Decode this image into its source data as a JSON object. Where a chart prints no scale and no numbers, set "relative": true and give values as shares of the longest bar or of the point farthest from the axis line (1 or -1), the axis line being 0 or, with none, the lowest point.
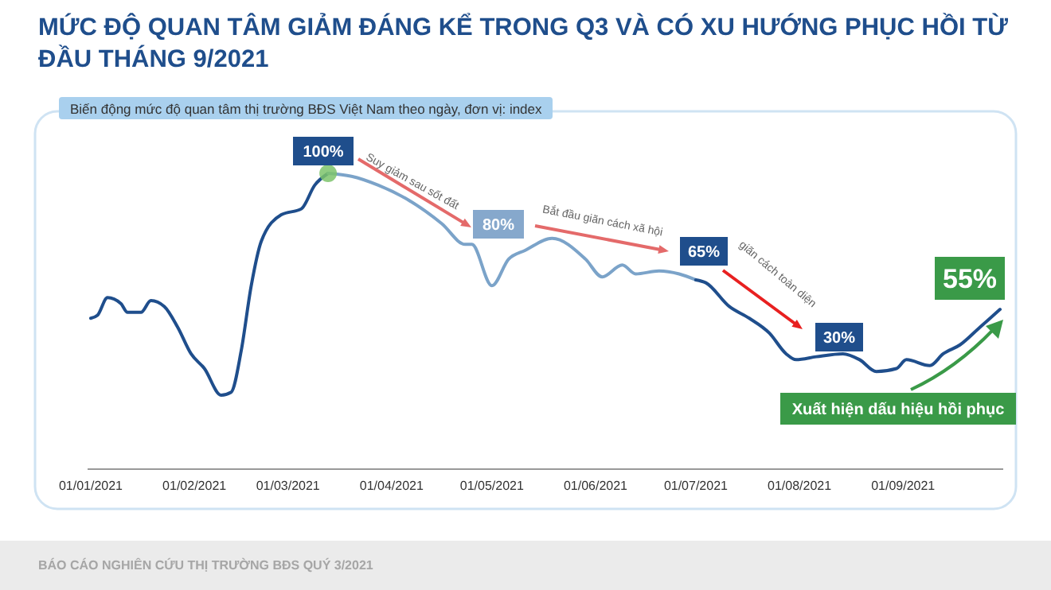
{
  "chart_data": {
    "type": "line",
    "relative": true,
    "title": "MỨC ĐỘ QUAN TÂM GIẢM ĐÁNG KỂ TRONG Q3 VÀ CÓ XU HƯỚNG PHỤC HỒI TỪ ĐẦU THÁNG 9/2021",
    "subtitle": "Biến động mức độ quan tâm thị trường BĐS Việt Nam theo ngày, đơn vị: index",
    "xlim": [
      "2021-01-01",
      "2021-09-30"
    ],
    "xticks": [
      {
        "value": "2021-01-01",
        "label": "01/01/2021"
      },
      {
        "value": "2021-02-01",
        "label": "01/02/2021"
      },
      {
        "value": "2021-03-01",
        "label": "01/03/2021"
      },
      {
        "value": "2021-04-01",
        "label": "01/04/2021"
      },
      {
        "value": "2021-05-01",
        "label": "01/05/2021"
      },
      {
        "value": "2021-06-01",
        "label": "01/06/2021"
      },
      {
        "value": "2021-07-01",
        "label": "01/07/2021"
      },
      {
        "value": "2021-08-01",
        "label": "01/08/2021"
      },
      {
        "value": "2021-09-01",
        "label": "01/09/2021"
      }
    ],
    "grid": false,
    "marker": "none",
    "line_style": "solid",
    "series": [
      {
        "color": "#1f4e8c",
        "x": [
          "2021-01-01",
          "2021-01-03",
          "2021-01-06",
          "2021-01-10",
          "2021-01-12",
          "2021-01-16",
          "2021-01-19",
          "2021-01-23",
          "2021-01-27",
          "2021-01-31",
          "2021-02-04",
          "2021-02-09",
          "2021-02-12",
          "2021-02-15",
          "2021-02-18",
          "2021-02-21",
          "2021-02-27",
          "2021-03-05",
          "2021-03-09",
          "2021-03-13"
        ],
        "values": [
          0.51,
          0.52,
          0.58,
          0.56,
          0.53,
          0.53,
          0.57,
          0.55,
          0.48,
          0.39,
          0.34,
          0.25,
          0.26,
          0.4,
          0.62,
          0.77,
          0.86,
          0.88,
          0.96,
          1
        ]
      },
      {
        "color": "#7ba3c9",
        "x": [
          "2021-03-13",
          "2021-03-20",
          "2021-03-28",
          "2021-04-06",
          "2021-04-16",
          "2021-04-23",
          "2021-04-25",
          "2021-05-01",
          "2021-05-06",
          "2021-05-11",
          "2021-05-19",
          "2021-05-29",
          "2021-06-03",
          "2021-06-09",
          "2021-06-13",
          "2021-06-20",
          "2021-06-26",
          "2021-07-01"
        ],
        "values": [
          1,
          0.99,
          0.96,
          0.91,
          0.83,
          0.76,
          0.76,
          0.62,
          0.71,
          0.74,
          0.78,
          0.71,
          0.65,
          0.69,
          0.66,
          0.67,
          0.66,
          0.64
        ]
      },
      {
        "color": "#1f4e8c",
        "x": [
          "2021-07-01",
          "2021-07-04",
          "2021-07-11",
          "2021-07-17",
          "2021-07-23",
          "2021-07-28",
          "2021-07-31",
          "2021-08-06",
          "2021-08-14",
          "2021-08-19",
          "2021-08-24",
          "2021-08-30",
          "2021-09-02",
          "2021-09-09",
          "2021-09-13",
          "2021-09-18",
          "2021-09-24",
          "2021-09-30"
        ],
        "values": [
          0.64,
          0.63,
          0.55,
          0.51,
          0.46,
          0.39,
          0.37,
          0.38,
          0.39,
          0.37,
          0.33,
          0.34,
          0.37,
          0.35,
          0.39,
          0.42,
          0.48,
          0.54
        ]
      },
      {
        "type": "scatter",
        "marker": "circle",
        "color": "#7dc36b",
        "x": [
          "2021-03-13"
        ],
        "values": [
          1
        ]
      }
    ],
    "annotations": [
      "100%",
      "Suy giảm sau sốt đất",
      "80%",
      "Bắt đầu giãn cách xã hội",
      "65%",
      "giãn cách toàn diện",
      "30%",
      "55%",
      "Xuất hiện dấu hiệu hồi phục",
      "BÁO CÁO NGHIÊN CỨU THỊ TRƯỜNG BĐS QUÝ 3/2021"
    ]
  }
}
